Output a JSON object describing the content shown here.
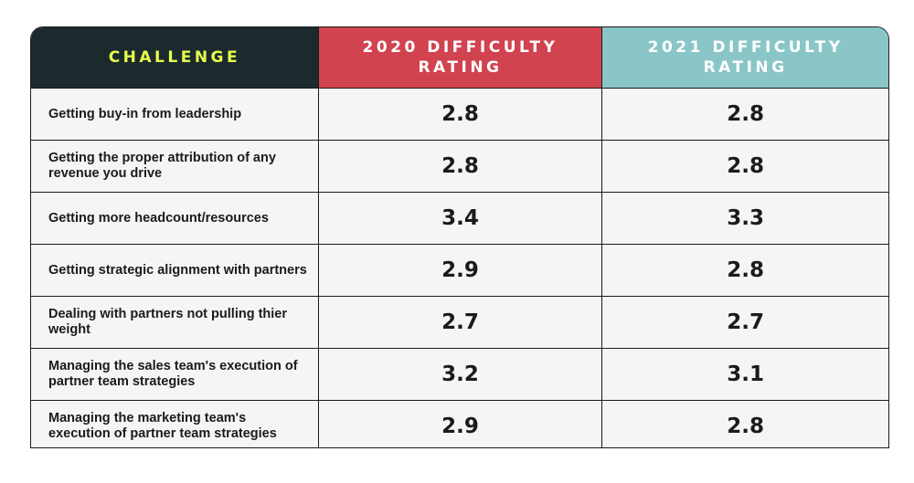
{
  "chart_data": {
    "type": "table",
    "columns": [
      "CHALLENGE",
      "2020 DIFFICULTY RATING",
      "2021 DIFFICULTY RATING"
    ],
    "rows": [
      {
        "challenge": "Getting buy-in from leadership",
        "v2020": "2.8",
        "v2021": "2.8"
      },
      {
        "challenge": "Getting the proper attribution of any revenue you drive",
        "v2020": "2.8",
        "v2021": "2.8"
      },
      {
        "challenge": "Getting more headcount/resources",
        "v2020": "3.4",
        "v2021": "3.3"
      },
      {
        "challenge": "Getting strategic alignment with partners",
        "v2020": "2.9",
        "v2021": "2.8"
      },
      {
        "challenge": "Dealing with partners not pulling thier weight",
        "v2020": "2.7",
        "v2021": "2.7"
      },
      {
        "challenge": "Managing the sales team's execution of partner team strategies",
        "v2020": "3.2",
        "v2021": "3.1"
      },
      {
        "challenge": "Managing the marketing team's execution of partner team strategies",
        "v2020": "2.9",
        "v2021": "2.8"
      }
    ],
    "colors": {
      "header_challenge_bg": "#1c2a2e",
      "header_challenge_text": "#e8ff4a",
      "header_2020_bg": "#d1434f",
      "header_2021_bg": "#8ac6c8",
      "cell_bg": "#f6f4f4"
    }
  }
}
